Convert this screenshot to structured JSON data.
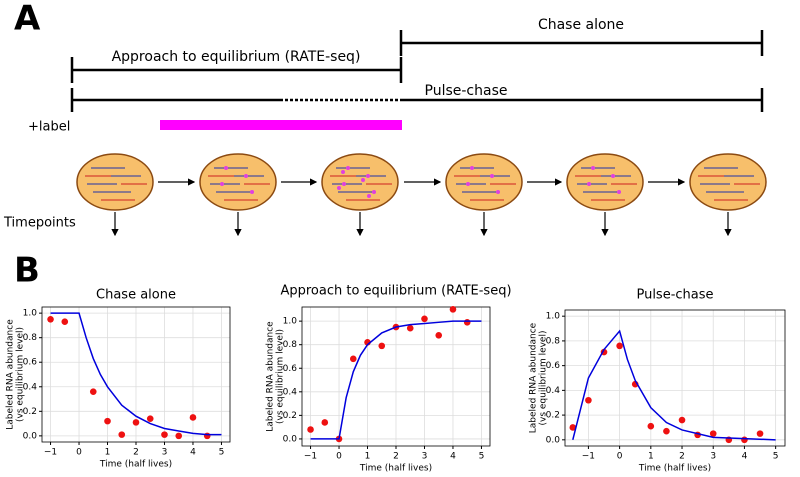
{
  "panel_a": {
    "letter": "A",
    "chase_alone": "Chase alone",
    "approach": "Approach to equilibrium (RATE-seq)",
    "pulse_chase": "Pulse-chase",
    "label": "+label",
    "timepoints": "Timepoints"
  },
  "panel_b": {
    "letter": "B"
  },
  "chart_data": [
    {
      "type": "scatter",
      "title": "Chase alone",
      "xlabel": "Time (half lives)",
      "ylabel": [
        "Labeled RNA abundance",
        "(vs equilibrium level)"
      ],
      "grid": true,
      "xlim": [
        -1.3,
        5.3
      ],
      "xticks": [
        {
          "value": -1,
          "label": "−1"
        },
        0,
        1,
        2,
        3,
        4,
        5
      ],
      "ylim": [
        -0.05,
        1.05
      ],
      "yticks": [
        {
          "value": 0,
          "label": "0.0"
        },
        {
          "value": 0.2,
          "label": "0.2"
        },
        {
          "value": 0.4,
          "label": "0.4"
        },
        {
          "value": 0.6,
          "label": "0.6"
        },
        {
          "value": 0.8,
          "label": "0.8"
        },
        {
          "value": 1,
          "label": "1.0"
        }
      ],
      "series": [
        {
          "kind": "points",
          "color": "#ee1111",
          "x": [
            -1,
            -0.5,
            0.5,
            1,
            1.5,
            2,
            2.5,
            3,
            3.5,
            4,
            4.5
          ],
          "values": [
            0.95,
            0.93,
            0.36,
            0.12,
            0.01,
            0.11,
            0.14,
            0.01,
            0.0,
            0.15,
            0.0
          ]
        },
        {
          "kind": "line",
          "color": "#0000dd",
          "x": [
            -1,
            0,
            0.25,
            0.5,
            0.75,
            1,
            1.5,
            2,
            2.5,
            3,
            3.5,
            4,
            4.5,
            5
          ],
          "values": [
            1,
            1,
            0.8,
            0.63,
            0.5,
            0.4,
            0.25,
            0.16,
            0.1,
            0.06,
            0.04,
            0.02,
            0.01,
            0.01
          ]
        }
      ]
    },
    {
      "type": "scatter",
      "title": "Approach to equilibrium (RATE-seq)",
      "xlabel": "Time (half lives)",
      "ylabel": [
        "Labeled RNA abundance",
        "(vs equilibrium level)"
      ],
      "grid": true,
      "xlim": [
        -1.3,
        5.3
      ],
      "xticks": [
        {
          "value": -1,
          "label": "−1"
        },
        0,
        1,
        2,
        3,
        4,
        5
      ],
      "ylim": [
        -0.06,
        1.12
      ],
      "yticks": [
        {
          "value": 0,
          "label": "0.0"
        },
        {
          "value": 0.2,
          "label": "0.2"
        },
        {
          "value": 0.4,
          "label": "0.4"
        },
        {
          "value": 0.6,
          "label": "0.6"
        },
        {
          "value": 0.8,
          "label": "0.8"
        },
        {
          "value": 1,
          "label": "1.0"
        }
      ],
      "series": [
        {
          "kind": "points",
          "color": "#ee1111",
          "x": [
            -1,
            -0.5,
            0,
            0.5,
            1,
            1.5,
            2,
            2.5,
            3,
            3.5,
            4,
            4.5
          ],
          "values": [
            0.08,
            0.14,
            0.0,
            0.68,
            0.82,
            0.79,
            0.95,
            0.94,
            1.02,
            0.88,
            1.1,
            0.99
          ]
        },
        {
          "kind": "line",
          "color": "#0000dd",
          "x": [
            -1,
            0,
            0.25,
            0.5,
            0.75,
            1,
            1.5,
            2,
            2.5,
            3,
            3.5,
            4,
            5
          ],
          "values": [
            0,
            0,
            0.35,
            0.57,
            0.71,
            0.8,
            0.9,
            0.95,
            0.97,
            0.98,
            0.99,
            1,
            1
          ]
        }
      ]
    },
    {
      "type": "scatter",
      "title": "Pulse-chase",
      "xlabel": "Time (half lives)",
      "ylabel": [
        "Labeled RNA abundance",
        "(vs equilibrium level)"
      ],
      "grid": true,
      "xlim": [
        -1.75,
        5.3
      ],
      "xticks": [
        {
          "value": -1,
          "label": "−1"
        },
        0,
        1,
        2,
        3,
        4,
        5
      ],
      "ylim": [
        -0.05,
        1.05
      ],
      "yticks": [
        {
          "value": 0,
          "label": "0.0"
        },
        {
          "value": 0.2,
          "label": "0.2"
        },
        {
          "value": 0.4,
          "label": "0.4"
        },
        {
          "value": 0.6,
          "label": "0.6"
        },
        {
          "value": 0.8,
          "label": "0.8"
        },
        {
          "value": 1,
          "label": "1.0"
        }
      ],
      "series": [
        {
          "kind": "points",
          "color": "#ee1111",
          "x": [
            -1.5,
            -1,
            -0.5,
            0,
            0.5,
            1,
            1.5,
            2,
            2.5,
            3,
            3.5,
            4,
            4.5
          ],
          "values": [
            0.1,
            0.32,
            0.71,
            0.76,
            0.45,
            0.11,
            0.07,
            0.16,
            0.04,
            0.05,
            0.0,
            0.0,
            0.05
          ]
        },
        {
          "kind": "line",
          "color": "#0000dd",
          "x": [
            -1.5,
            -1,
            -0.5,
            0,
            0.25,
            0.5,
            1,
            1.5,
            2,
            3,
            4,
            5
          ],
          "values": [
            0,
            0.5,
            0.73,
            0.88,
            0.65,
            0.48,
            0.26,
            0.14,
            0.08,
            0.02,
            0.01,
            0.0
          ]
        }
      ]
    }
  ]
}
